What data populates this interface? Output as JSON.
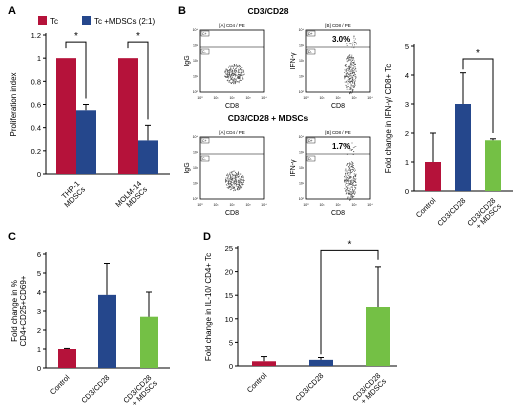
{
  "colors": {
    "red": "#B5123A",
    "blue": "#25478C",
    "green": "#74C045",
    "axis": "#000000",
    "dot": "#555555"
  },
  "panel_letters": {
    "A": "A",
    "B": "B",
    "C": "C",
    "D": "D"
  },
  "chart_data": [
    {
      "panel": "A",
      "type": "bar",
      "ylabel": "Proliferation index",
      "ylim": [
        0,
        1.2
      ],
      "yticks": [
        "0",
        "0.2",
        "0.4",
        "0.6",
        "0.8",
        "1",
        "1.2"
      ],
      "ytick_values": [
        0,
        0.2,
        0.4,
        0.6,
        0.8,
        1,
        1.2
      ],
      "categories": [
        "THP-1\nMDSCs",
        "MOLM-14\nMDSCs"
      ],
      "series": [
        {
          "name": "Tc",
          "color": "#B5123A",
          "values": [
            1.0,
            1.0
          ],
          "errors": [
            0,
            0
          ]
        },
        {
          "name": "Tc +MDSCs (2:1)",
          "color": "#25478C",
          "values": [
            0.55,
            0.29
          ],
          "errors": [
            0.05,
            0.13
          ]
        }
      ],
      "significance": [
        "*",
        "*"
      ],
      "legend": "top"
    },
    {
      "panel": "B",
      "type": "bar",
      "ylabel": "Fold change in IFN-γ/ CD8+ Tc",
      "ylim": [
        0,
        5
      ],
      "yticks": [
        "0",
        "1",
        "2",
        "3",
        "4",
        "5"
      ],
      "ytick_values": [
        0,
        1,
        2,
        3,
        4,
        5
      ],
      "categories": [
        "Control",
        "CD3/CD28",
        "CD3/CD28\n+ MDSCs"
      ],
      "values": [
        1.0,
        3.0,
        1.75
      ],
      "errors": [
        1.0,
        1.08,
        0.05
      ],
      "colors": [
        "#B5123A",
        "#25478C",
        "#74C045"
      ],
      "significance": "*"
    },
    {
      "panel": "C",
      "type": "bar",
      "ylabel": "Fold change in %\nCD4+CD25+CD69+",
      "ylim": [
        0,
        6
      ],
      "yticks": [
        "0",
        "1",
        "2",
        "3",
        "4",
        "5",
        "6"
      ],
      "ytick_values": [
        0,
        1,
        2,
        3,
        4,
        5,
        6
      ],
      "categories": [
        "Control",
        "CD3/CD28",
        "CD3/CD28\n+ MDSCs"
      ],
      "values": [
        1.0,
        3.85,
        2.7
      ],
      "errors": [
        0.03,
        1.65,
        1.3
      ],
      "colors": [
        "#B5123A",
        "#25478C",
        "#74C045"
      ]
    },
    {
      "panel": "D",
      "type": "bar",
      "ylabel": "Fold change in IL-10/ CD4+ Tc",
      "ylim": [
        0,
        25
      ],
      "yticks": [
        "0",
        "5",
        "10",
        "15",
        "20",
        "25"
      ],
      "ytick_values": [
        0,
        5,
        10,
        15,
        20,
        25
      ],
      "categories": [
        "Control",
        "CD3/CD28",
        "CD3/CD28\n+ MDSCs"
      ],
      "values": [
        1.0,
        1.3,
        12.5
      ],
      "errors": [
        1.0,
        0.5,
        8.5
      ],
      "colors": [
        "#B5123A",
        "#25478C",
        "#74C045"
      ],
      "significance": "*"
    }
  ],
  "flow": {
    "group_labels": [
      "CD3/CD28",
      "CD3/CD28 + MDSCs"
    ],
    "plot_title": "[A] CD4 / PE",
    "plot_title_right": "[B] CD8 / PE",
    "xlabel": "CD8",
    "ylabel_isotype": "IgG",
    "ylabel_stain": "IFN-γ",
    "percents": [
      "3.0%",
      "1.7%"
    ],
    "gate_labels": [
      "C+",
      "C-",
      "D+",
      "D-"
    ],
    "axis_ticks": [
      "10⁰",
      "10¹",
      "10²",
      "10³",
      "10⁴"
    ]
  }
}
